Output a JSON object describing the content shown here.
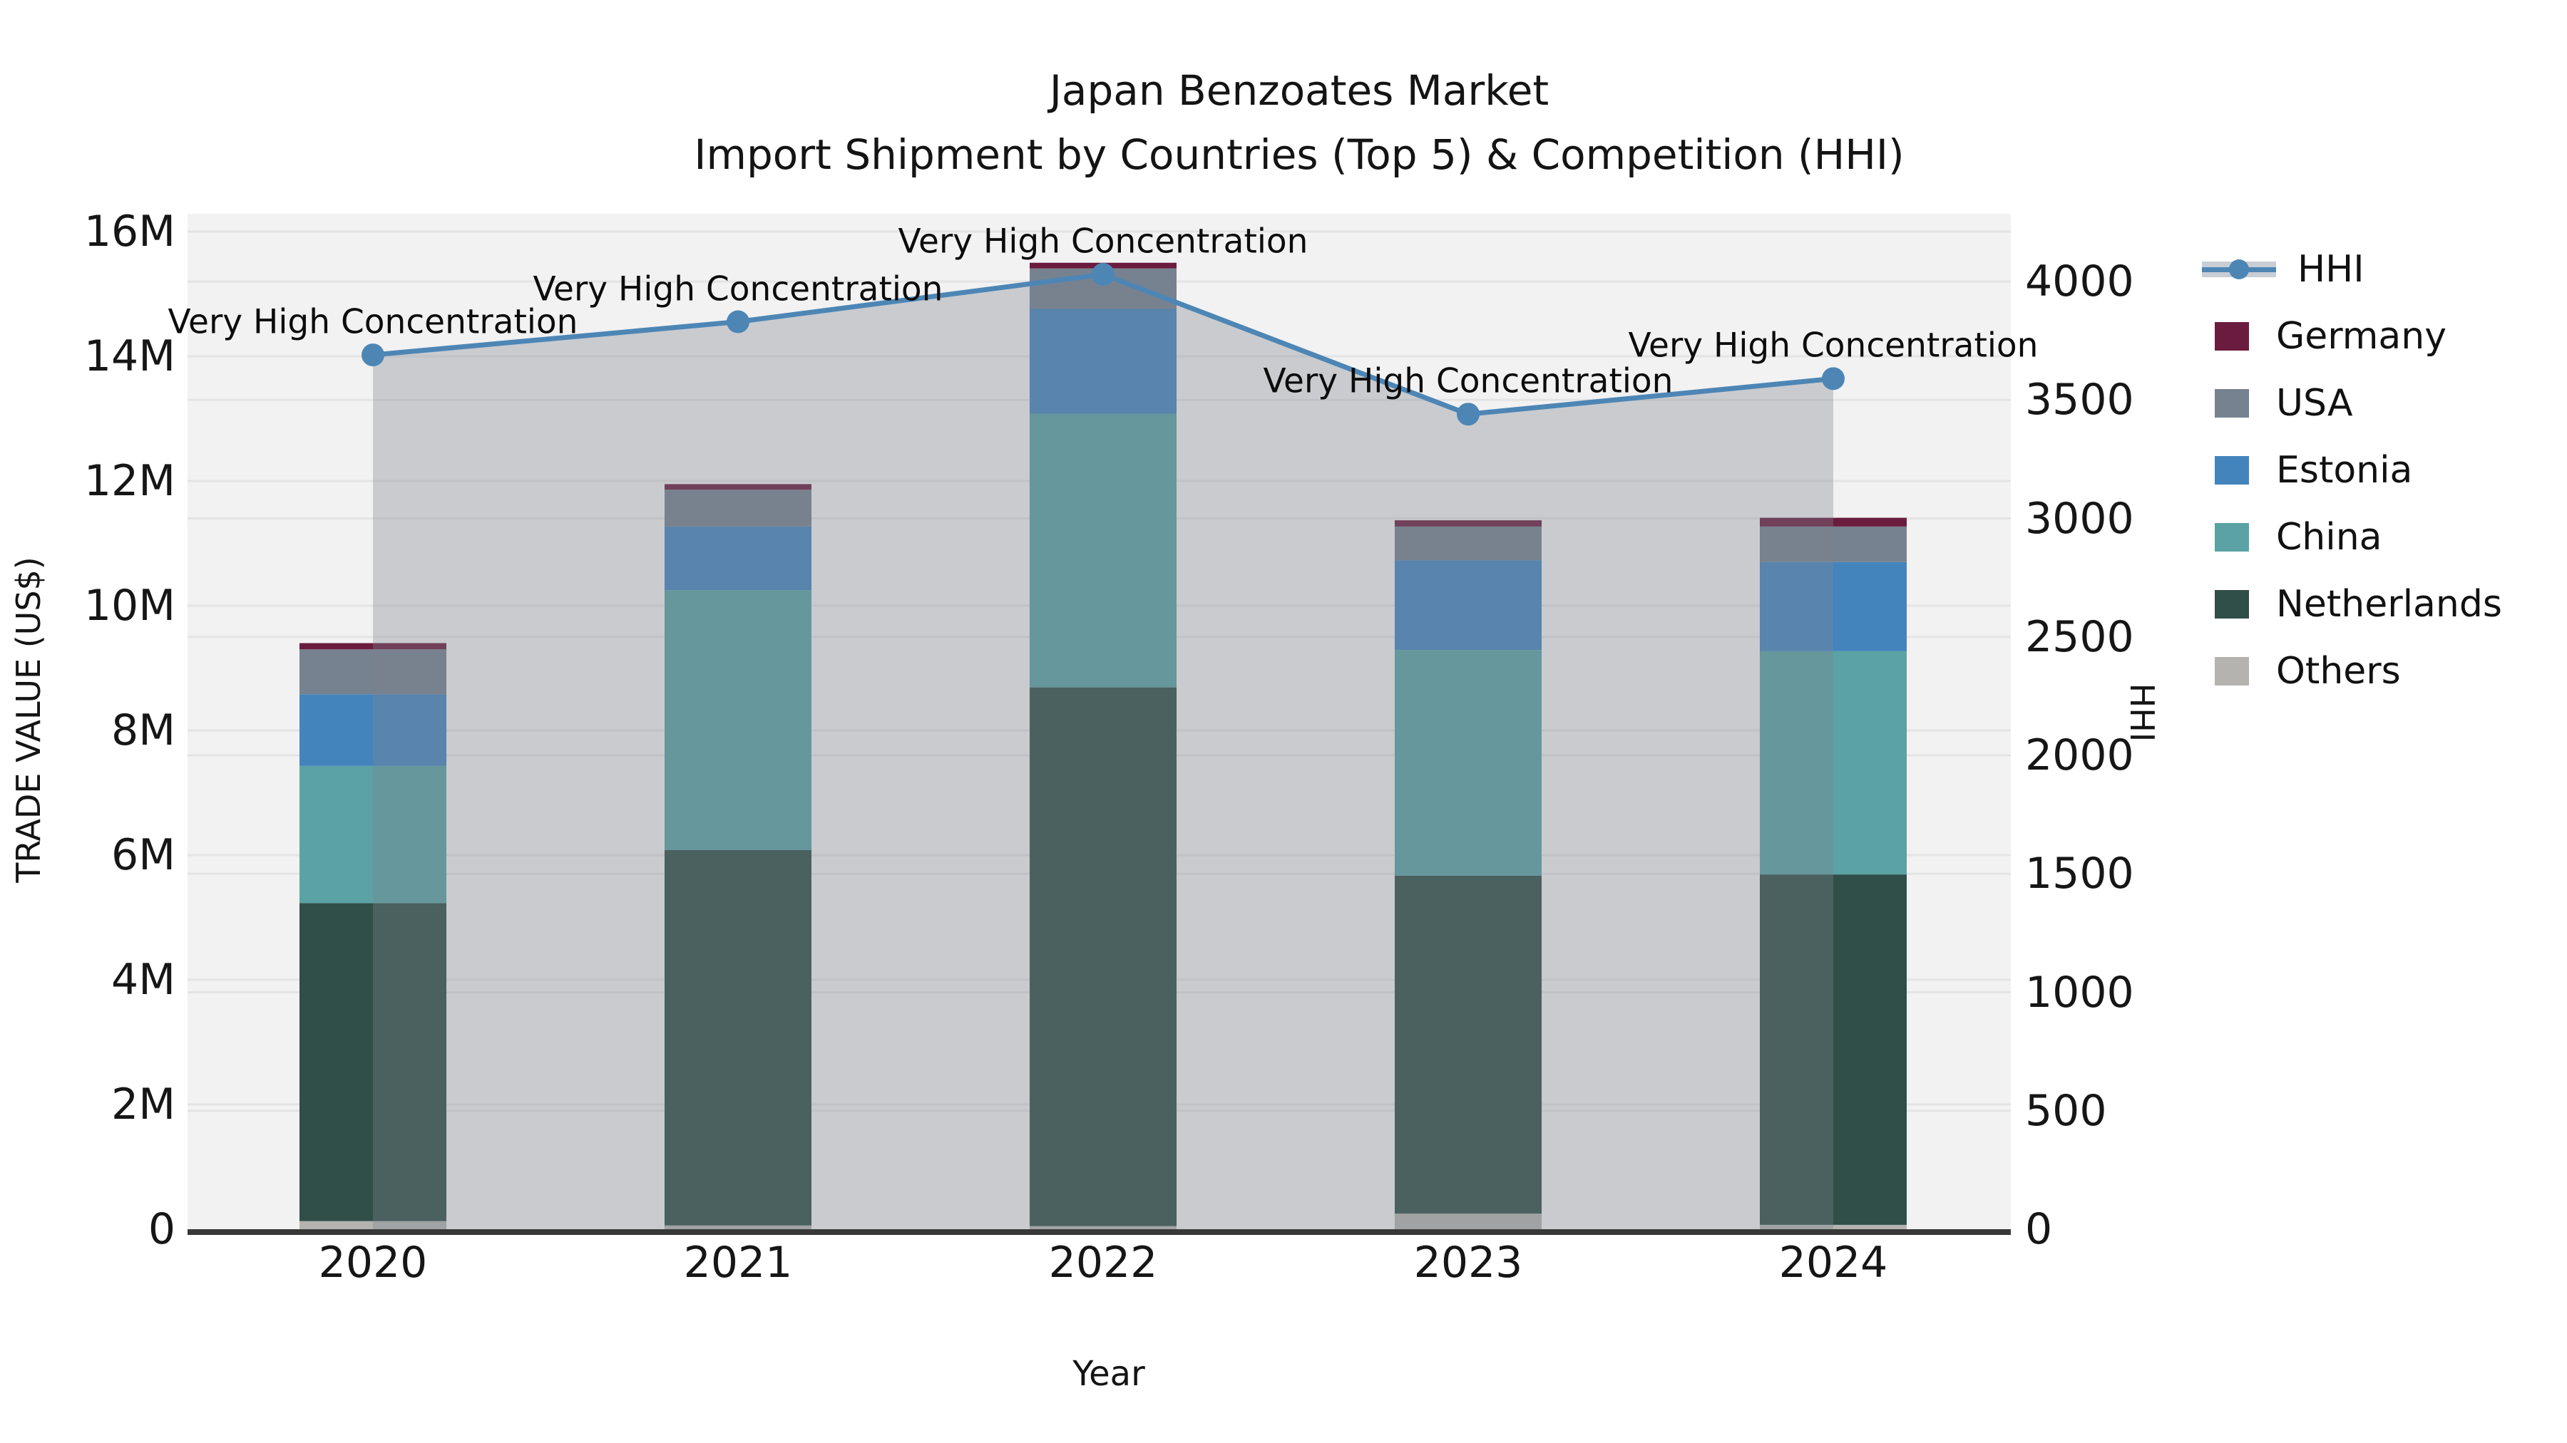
{
  "title": "Japan Benzoates Market",
  "subtitle": "Import Shipment by Countries (Top 5) & Competition (HHI)",
  "axes": {
    "x_label": "Year",
    "y_left_label": "TRADE VALUE (US$)",
    "y_right_label": "HHI",
    "y_left_ticks": [
      "0",
      "2M",
      "4M",
      "6M",
      "8M",
      "10M",
      "12M",
      "14M",
      "16M"
    ],
    "y_right_ticks": [
      "0",
      "500",
      "1000",
      "1500",
      "2000",
      "2500",
      "3000",
      "3500",
      "4000"
    ],
    "x_ticks": [
      "2020",
      "2021",
      "2022",
      "2023",
      "2024"
    ]
  },
  "legend": {
    "items": [
      {
        "label": "HHI",
        "type": "line",
        "color": "#4D86B5"
      },
      {
        "label": "Germany",
        "type": "patch",
        "color": "#6B1C3E"
      },
      {
        "label": "USA",
        "type": "patch",
        "color": "#76828F"
      },
      {
        "label": "Estonia",
        "type": "patch",
        "color": "#4484BD"
      },
      {
        "label": "China",
        "type": "patch",
        "color": "#5AA2A4"
      },
      {
        "label": "Netherlands",
        "type": "patch",
        "color": "#2F4F48"
      },
      {
        "label": "Others",
        "type": "patch",
        "color": "#B4B3AF"
      }
    ]
  },
  "colors": {
    "page_bg": "#FFFFFF",
    "plot_bg": "#F2F2F2",
    "grid": "#E4E4E4",
    "axis_line": "#383838",
    "hhi_line": "#4D86B5",
    "hhi_area_fill": "rgba(125,132,142,0.35)",
    "text": "#111111"
  },
  "chart_data": {
    "type": "combo: stacked bar (left axis) + line with area fill (right axis)",
    "categories": [
      "2020",
      "2021",
      "2022",
      "2023",
      "2024"
    ],
    "bar_unit": "Trade value, US$ millions",
    "stack_order_bottom_to_top": [
      "Others",
      "Netherlands",
      "China",
      "Estonia",
      "USA",
      "Germany"
    ],
    "series": [
      {
        "name": "Others",
        "color": "#B4B3AF",
        "values": [
          0.13,
          0.06,
          0.05,
          0.25,
          0.07
        ]
      },
      {
        "name": "Netherlands",
        "color": "#2F4F48",
        "values": [
          5.1,
          6.02,
          8.64,
          5.42,
          5.62
        ]
      },
      {
        "name": "China",
        "color": "#5AA2A4",
        "values": [
          2.2,
          4.17,
          4.39,
          3.62,
          3.58
        ]
      },
      {
        "name": "Estonia",
        "color": "#4484BD",
        "values": [
          1.15,
          1.02,
          1.68,
          1.44,
          1.43
        ]
      },
      {
        "name": "USA",
        "color": "#76828F",
        "values": [
          0.72,
          0.59,
          0.65,
          0.54,
          0.57
        ]
      },
      {
        "name": "Germany",
        "color": "#6B1C3E",
        "values": [
          0.1,
          0.09,
          0.09,
          0.1,
          0.14
        ]
      }
    ],
    "bar_totals": [
      9.4,
      11.95,
      15.5,
      11.37,
      11.41
    ],
    "line": {
      "name": "HHI",
      "axis": "right",
      "color": "#4D86B5",
      "values": [
        3690,
        3830,
        4030,
        3440,
        3590
      ],
      "area_fill": true
    },
    "annotations": [
      "Very High Concentration",
      "Very High Concentration",
      "Very High Concentration",
      "Very High Concentration",
      "Very High Concentration"
    ],
    "title": "Japan Benzoates Market",
    "subtitle": "Import Shipment by Countries (Top 5) & Competition (HHI)",
    "xlabel": "Year",
    "ylabel_left": "TRADE VALUE (US$)",
    "ylabel_right": "HHI",
    "ylim_left": [
      0,
      16000000
    ],
    "ylim_right": [
      0,
      4000
    ],
    "grid": true,
    "legend_position": "right-outside"
  }
}
